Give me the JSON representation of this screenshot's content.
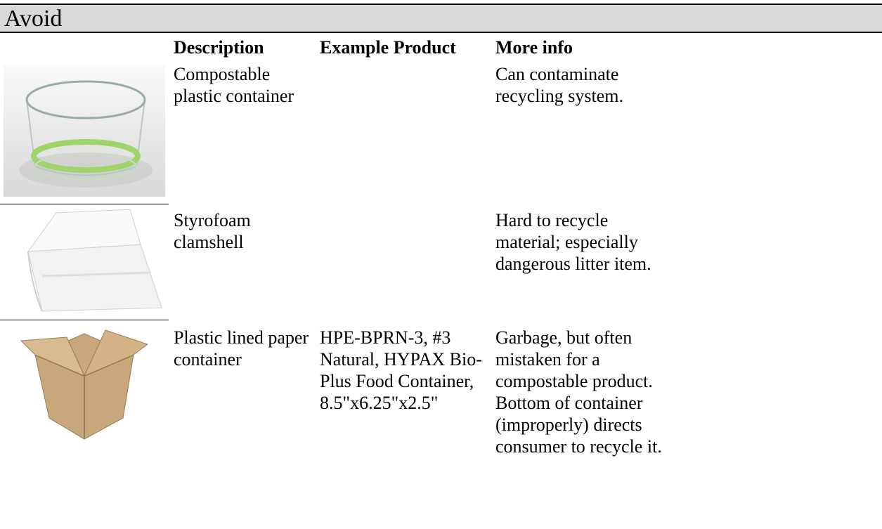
{
  "header": {
    "title": "Avoid"
  },
  "table": {
    "columns": [
      "Description",
      "Example Product",
      "More info"
    ],
    "rows": [
      {
        "description": "Compostable plastic container",
        "more_info": "Can contaminate recycling system."
      },
      {
        "description": "Styrofoam clamshell",
        "more_info": "Hard to recycle material; especially dangerous litter item."
      },
      {
        "description": "Plastic lined paper container",
        "example_product": "HPE-BPRN-3, #3 Natural, HYPAX Bio-Plus Food Container, 8.5\"x6.25\"x2.5\"",
        "more_info": "Garbage, but often mistaken for a compostable product. Bottom of container (improperly) directs consumer to recycle it."
      }
    ]
  }
}
